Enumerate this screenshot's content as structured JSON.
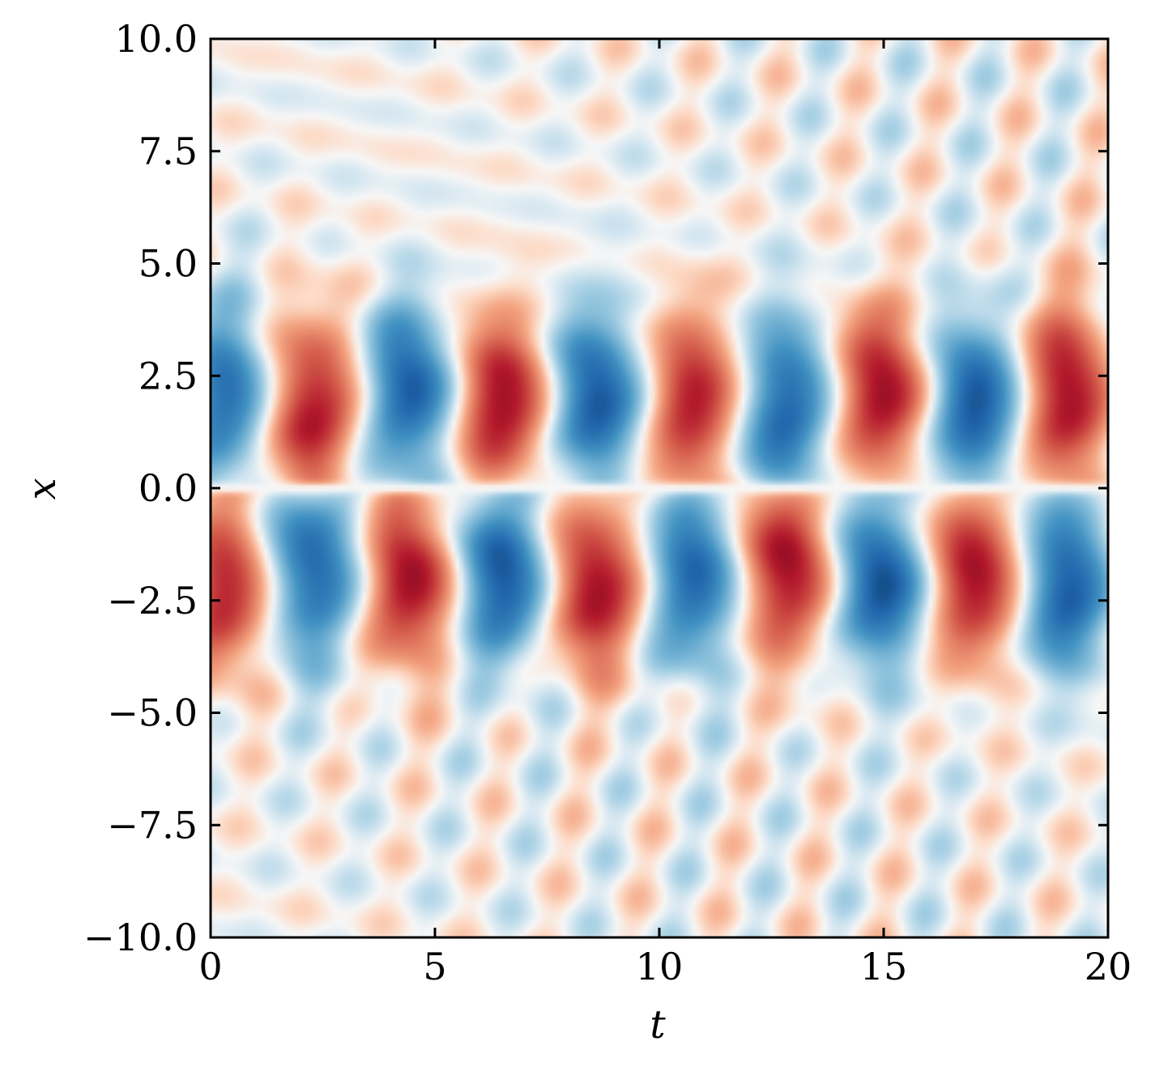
{
  "chart_data": {
    "type": "heatmap",
    "xlabel": "t",
    "ylabel": "x",
    "xlim": [
      0,
      20
    ],
    "ylim": [
      -10,
      10
    ],
    "x_ticks": [
      0,
      5,
      10,
      15,
      20
    ],
    "x_tick_labels": [
      "0",
      "5",
      "10",
      "15",
      "20"
    ],
    "y_ticks": [
      10,
      7.5,
      5,
      2.5,
      0,
      -2.5,
      -5,
      -7.5,
      -10
    ],
    "y_tick_labels": [
      "10.0",
      "7.5",
      "5.0",
      "2.5",
      "0.0",
      "−2.5",
      "−5.0",
      "−7.5",
      "−10.0"
    ],
    "colormap": "RdBu_r",
    "color_range": [
      -1,
      1
    ],
    "colors": {
      "negative": "#053061",
      "zero": "#f7f7f7",
      "positive": "#67001f"
    },
    "field": {
      "description_note": "",
      "dominant_period_t": 4.2,
      "antisymmetric_about_x": 0,
      "core_center_abs_x": 2.0,
      "core_width_x": 2.6,
      "peak_cells": [
        {
          "t": 0.3,
          "x": 2.5,
          "v": -0.45
        },
        {
          "t": 2.0,
          "x": 1.5,
          "v": 0.85
        },
        {
          "t": 4.2,
          "x": 2.3,
          "v": -0.85
        },
        {
          "t": 6.2,
          "x": 1.8,
          "v": 0.9
        },
        {
          "t": 8.3,
          "x": 2.3,
          "v": -0.85
        },
        {
          "t": 10.6,
          "x": 2.0,
          "v": 0.7
        },
        {
          "t": 12.6,
          "x": 1.4,
          "v": -0.85
        },
        {
          "t": 14.7,
          "x": 2.3,
          "v": 0.8
        },
        {
          "t": 16.8,
          "x": 1.8,
          "v": -0.8
        },
        {
          "t": 18.9,
          "x": 2.4,
          "v": 0.95
        },
        {
          "t": 0.3,
          "x": -2.5,
          "v": 0.6
        },
        {
          "t": 2.0,
          "x": -1.5,
          "v": -0.8
        },
        {
          "t": 4.2,
          "x": -2.3,
          "v": 0.85
        },
        {
          "t": 6.2,
          "x": -1.8,
          "v": -0.85
        },
        {
          "t": 8.3,
          "x": -2.3,
          "v": 0.9
        },
        {
          "t": 10.6,
          "x": -2.0,
          "v": -0.75
        },
        {
          "t": 12.6,
          "x": -1.5,
          "v": 0.9
        },
        {
          "t": 14.7,
          "x": -2.3,
          "v": -0.85
        },
        {
          "t": 16.8,
          "x": -1.7,
          "v": 0.85
        },
        {
          "t": 18.9,
          "x": -2.3,
          "v": -0.95
        }
      ]
    }
  }
}
